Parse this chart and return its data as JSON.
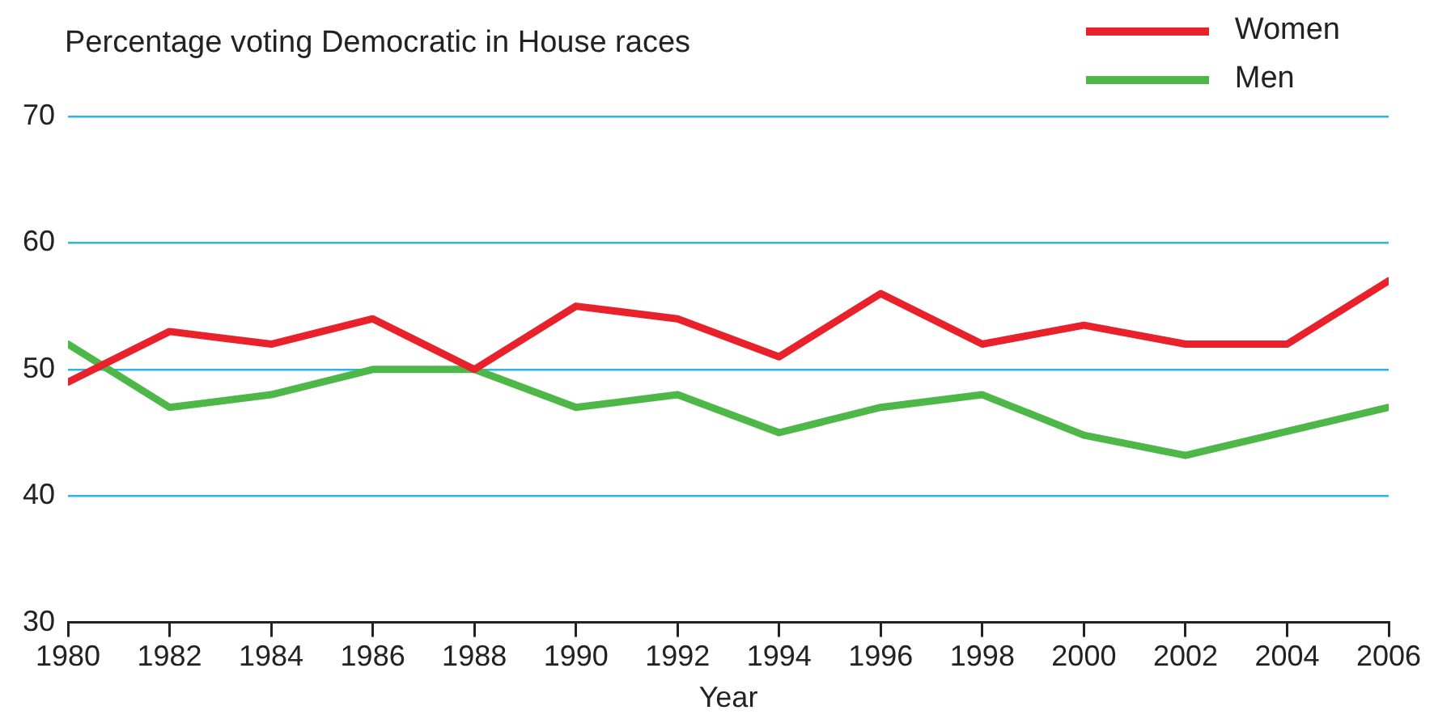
{
  "chart_data": {
    "type": "line",
    "title": "Percentage voting Democratic in House races",
    "xlabel": "Year",
    "x": [
      1980,
      1982,
      1984,
      1986,
      1988,
      1990,
      1992,
      1994,
      1996,
      1998,
      2000,
      2002,
      2004,
      2006
    ],
    "series": [
      {
        "name": "Women",
        "color": "#e8212b",
        "values": [
          49,
          53,
          52,
          54,
          50,
          55,
          54,
          51,
          56,
          52,
          53.5,
          52,
          52,
          57
        ]
      },
      {
        "name": "Men",
        "color": "#4db848",
        "values": [
          52,
          47,
          48,
          50,
          50,
          47,
          48,
          45,
          47,
          48,
          44.8,
          43.2,
          45.1,
          47
        ]
      }
    ],
    "xlim": [
      1980,
      2006
    ],
    "xticks": [
      1980,
      1982,
      1984,
      1986,
      1988,
      1990,
      1992,
      1994,
      1996,
      1998,
      2000,
      2002,
      2004,
      2006
    ],
    "ylim": [
      30,
      70
    ],
    "yticks": [
      30,
      40,
      50,
      60,
      70
    ],
    "grid": "y",
    "legend": "top right",
    "marker": "none",
    "line_style": "solid"
  }
}
